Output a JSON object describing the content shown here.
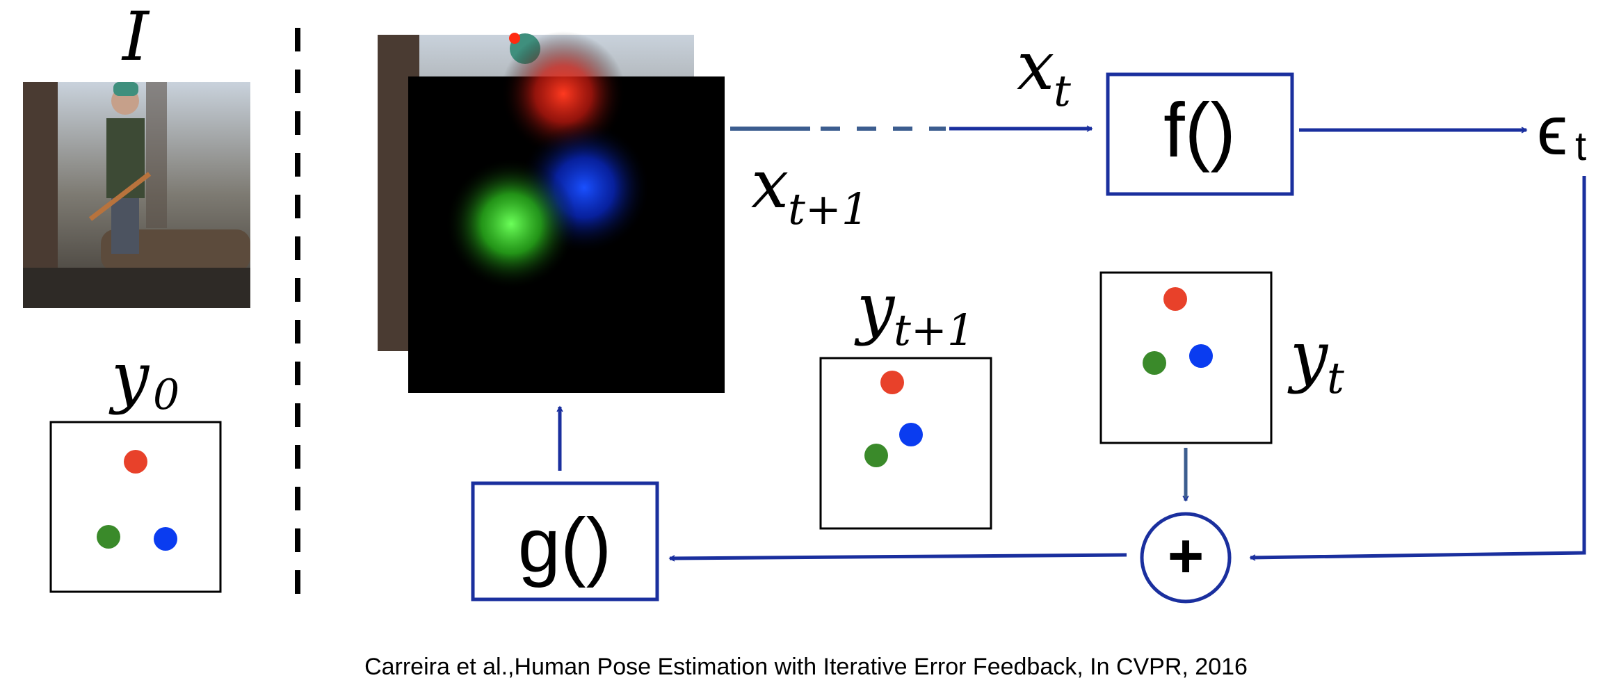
{
  "labels": {
    "image": "I",
    "y0": "y",
    "y0_sub": "0",
    "xt": "x",
    "xt_sub": "t",
    "xt1": "x",
    "xt1_sub": "t+1",
    "yt1": "y",
    "yt1_sub": "t+1",
    "yt": "y",
    "yt_sub": "t",
    "epsilon": "ϵ",
    "epsilon_sub": "t",
    "f_box": "f()",
    "g_box": "g()",
    "plus": "+"
  },
  "citation": "Carreira et al.,Human Pose Estimation with Iterative Error Feedback, In CVPR, 2016",
  "colors": {
    "arrow": "#1a2f9e",
    "arrow_light": "#3c5d8f",
    "keypoint_red": "#e8412a",
    "keypoint_green": "#3a8a2a",
    "keypoint_blue": "#0a3cf0"
  }
}
